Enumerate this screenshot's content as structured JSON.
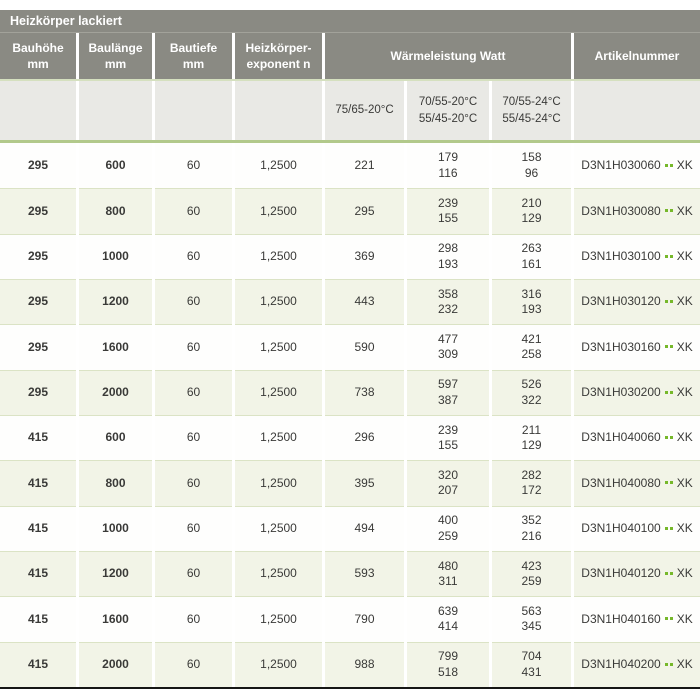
{
  "title": "Heizkörper lackiert",
  "colors": {
    "header_gray": "#8a8a83",
    "subheader_gray": "#e9e9e5",
    "row_stripe_green": "#f2f4e7",
    "divider_green": "#b2c98b",
    "accent_green_dots": "#76b82a"
  },
  "header": {
    "bauhoehe": "Bauhöhe\nmm",
    "baulaenge": "Baulänge\nmm",
    "bautiefe": "Bautiefe\nmm",
    "exponent": "Heizkörper-\nexponent n",
    "waermeleistung": "Wärmeleistung Watt",
    "artikelnummer": "Artikelnummer"
  },
  "subheader": {
    "temp1": "75/65-20°C",
    "temp2": "70/55-20°C\n55/45-20°C",
    "temp3": "70/55-24°C\n55/45-24°C"
  },
  "rows": [
    {
      "bauhoehe": "295",
      "baulaenge": "600",
      "bautiefe": "60",
      "exponent": "1,2500",
      "watt_75_65": "221",
      "watt_70_55_20": "179\n116",
      "watt_70_55_24": "158\n96",
      "artikel": "D3N1H030060",
      "artikel_suffix": "XK"
    },
    {
      "bauhoehe": "295",
      "baulaenge": "800",
      "bautiefe": "60",
      "exponent": "1,2500",
      "watt_75_65": "295",
      "watt_70_55_20": "239\n155",
      "watt_70_55_24": "210\n129",
      "artikel": "D3N1H030080",
      "artikel_suffix": "XK"
    },
    {
      "bauhoehe": "295",
      "baulaenge": "1000",
      "bautiefe": "60",
      "exponent": "1,2500",
      "watt_75_65": "369",
      "watt_70_55_20": "298\n193",
      "watt_70_55_24": "263\n161",
      "artikel": "D3N1H030100",
      "artikel_suffix": "XK"
    },
    {
      "bauhoehe": "295",
      "baulaenge": "1200",
      "bautiefe": "60",
      "exponent": "1,2500",
      "watt_75_65": "443",
      "watt_70_55_20": "358\n232",
      "watt_70_55_24": "316\n193",
      "artikel": "D3N1H030120",
      "artikel_suffix": "XK"
    },
    {
      "bauhoehe": "295",
      "baulaenge": "1600",
      "bautiefe": "60",
      "exponent": "1,2500",
      "watt_75_65": "590",
      "watt_70_55_20": "477\n309",
      "watt_70_55_24": "421\n258",
      "artikel": "D3N1H030160",
      "artikel_suffix": "XK"
    },
    {
      "bauhoehe": "295",
      "baulaenge": "2000",
      "bautiefe": "60",
      "exponent": "1,2500",
      "watt_75_65": "738",
      "watt_70_55_20": "597\n387",
      "watt_70_55_24": "526\n322",
      "artikel": "D3N1H030200",
      "artikel_suffix": "XK"
    },
    {
      "bauhoehe": "415",
      "baulaenge": "600",
      "bautiefe": "60",
      "exponent": "1,2500",
      "watt_75_65": "296",
      "watt_70_55_20": "239\n155",
      "watt_70_55_24": "211\n129",
      "artikel": "D3N1H040060",
      "artikel_suffix": "XK"
    },
    {
      "bauhoehe": "415",
      "baulaenge": "800",
      "bautiefe": "60",
      "exponent": "1,2500",
      "watt_75_65": "395",
      "watt_70_55_20": "320\n207",
      "watt_70_55_24": "282\n172",
      "artikel": "D3N1H040080",
      "artikel_suffix": "XK"
    },
    {
      "bauhoehe": "415",
      "baulaenge": "1000",
      "bautiefe": "60",
      "exponent": "1,2500",
      "watt_75_65": "494",
      "watt_70_55_20": "400\n259",
      "watt_70_55_24": "352\n216",
      "artikel": "D3N1H040100",
      "artikel_suffix": "XK"
    },
    {
      "bauhoehe": "415",
      "baulaenge": "1200",
      "bautiefe": "60",
      "exponent": "1,2500",
      "watt_75_65": "593",
      "watt_70_55_20": "480\n311",
      "watt_70_55_24": "423\n259",
      "artikel": "D3N1H040120",
      "artikel_suffix": "XK"
    },
    {
      "bauhoehe": "415",
      "baulaenge": "1600",
      "bautiefe": "60",
      "exponent": "1,2500",
      "watt_75_65": "790",
      "watt_70_55_20": "639\n414",
      "watt_70_55_24": "563\n345",
      "artikel": "D3N1H040160",
      "artikel_suffix": "XK"
    },
    {
      "bauhoehe": "415",
      "baulaenge": "2000",
      "bautiefe": "60",
      "exponent": "1,2500",
      "watt_75_65": "988",
      "watt_70_55_20": "799\n518",
      "watt_70_55_24": "704\n431",
      "artikel": "D3N1H040200",
      "artikel_suffix": "XK"
    }
  ]
}
